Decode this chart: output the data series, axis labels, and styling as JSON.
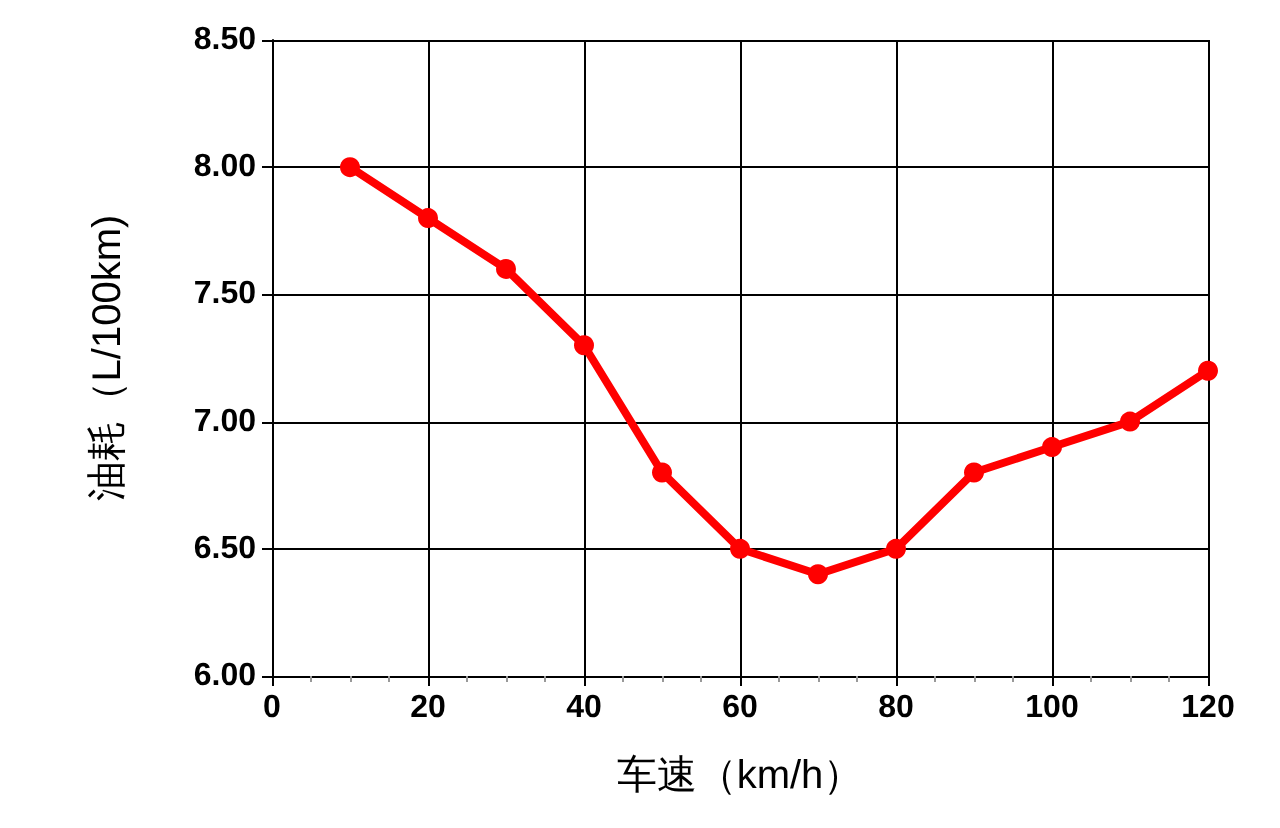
{
  "chart_data": {
    "type": "line",
    "xlabel": "车速（km/h）",
    "ylabel": "油耗（L/100km)",
    "x": [
      10,
      20,
      30,
      40,
      50,
      60,
      70,
      80,
      90,
      100,
      110,
      120
    ],
    "series": [
      {
        "color": "#ff0000",
        "values": [
          8.0,
          7.8,
          7.6,
          7.3,
          6.8,
          6.5,
          6.4,
          6.5,
          6.8,
          6.9,
          7.0,
          7.2
        ]
      }
    ],
    "xlim": [
      0,
      120
    ],
    "xticks": [
      0,
      20,
      40,
      60,
      80,
      100,
      120
    ],
    "ylim": [
      6.0,
      8.5
    ],
    "yticks": [
      {
        "value": 6.0,
        "label": "6.00"
      },
      {
        "value": 6.5,
        "label": "6.50"
      },
      {
        "value": 7.0,
        "label": "7.00"
      },
      {
        "value": 7.5,
        "label": "7.50"
      },
      {
        "value": 8.0,
        "label": "8.00"
      },
      {
        "value": 8.5,
        "label": "8.50"
      }
    ],
    "grid": true,
    "marker": "circle",
    "line_style": "solid"
  }
}
